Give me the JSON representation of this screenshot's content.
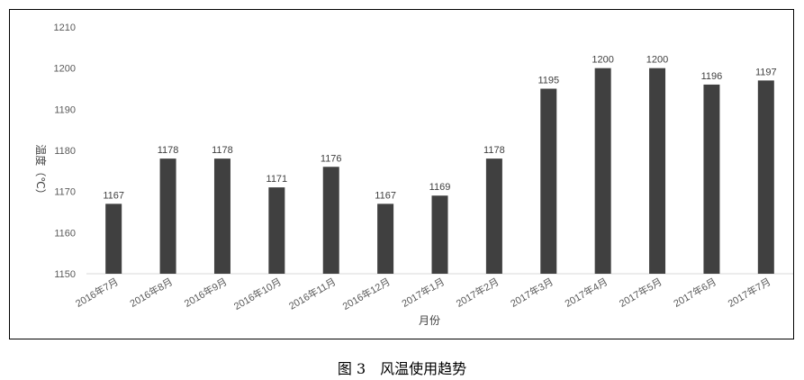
{
  "caption": "图 3　风温使用趋势",
  "chart_data": {
    "type": "bar",
    "categories": [
      "2016年7月",
      "2016年8月",
      "2016年9月",
      "2016年10月",
      "2016年11月",
      "2016年12月",
      "2017年1月",
      "2017年2月",
      "2017年3月",
      "2017年4月",
      "2017年5月",
      "2017年6月",
      "2017年7月"
    ],
    "values": [
      1167,
      1178,
      1178,
      1171,
      1176,
      1167,
      1169,
      1178,
      1195,
      1200,
      1200,
      1196,
      1197
    ],
    "title": "",
    "xlabel": "月份",
    "ylabel": "温度（℃）",
    "ylim": [
      1150,
      1210
    ],
    "yticks": [
      1150,
      1160,
      1170,
      1180,
      1190,
      1200,
      1210
    ],
    "grid": false,
    "bar_color": "#404040",
    "data_labels": true
  }
}
